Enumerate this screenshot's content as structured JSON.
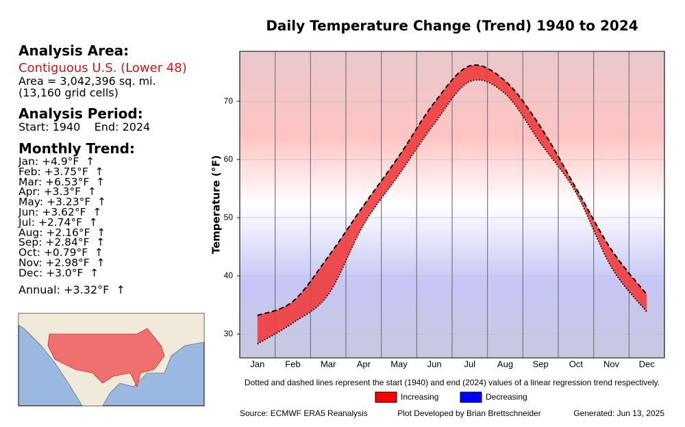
{
  "panel": {
    "area_heading": "Analysis Area:",
    "region": "Contiguous U.S. (Lower 48)",
    "area": "Area = 3,042,396 sq. mi.",
    "cells": "(13,160 grid cells)",
    "period_heading": "Analysis Period:",
    "period": "Start: 1940    End: 2024",
    "trend_heading": "Monthly Trend:",
    "trends": [
      "Jan: +4.9°F  ↑",
      "Feb: +3.75°F  ↑",
      "Mar: +6.53°F  ↑",
      "Apr: +3.3°F  ↑",
      "May: +3.23°F  ↑",
      "Jun: +3.62°F  ↑",
      "Jul: +2.74°F  ↑",
      "Aug: +2.16°F  ↑",
      "Sep: +2.84°F  ↑",
      "Oct: +0.79°F  ↑",
      "Nov: +2.98°F  ↑",
      "Dec: +3.0°F  ↑"
    ],
    "annual": "Annual: +3.32°F  ↑"
  },
  "chart_data": {
    "type": "line",
    "title": "Daily Temperature Change (Trend) 1940 to 2024",
    "y_label": "Temperature (°F)",
    "categories": [
      "Jan",
      "Feb",
      "Mar",
      "Apr",
      "May",
      "Jun",
      "Jul",
      "Aug",
      "Sep",
      "Oct",
      "Nov",
      "Dec"
    ],
    "series": [
      {
        "color": "#000000",
        "dash": "dotted",
        "values": [
          28.3,
          31.9,
          36.8,
          48.8,
          57.4,
          66.2,
          73.4,
          71.3,
          62.8,
          54.3,
          41.5,
          33.8
        ]
      },
      {
        "color": "#000000",
        "dash": "dashed",
        "values": [
          33.2,
          35.6,
          43.3,
          52.1,
          60.6,
          69.8,
          76.1,
          73.5,
          65.6,
          55.1,
          44.5,
          36.8
        ]
      }
    ],
    "fill_color": "#f03c3c",
    "ylim": [
      25.9,
      78.6
    ],
    "yticks": [
      30,
      40,
      50,
      60,
      70
    ],
    "grid": true,
    "note": "Dotted and dashed lines represent the start (1940) and end (2024) values of a linear regression trend respectively.",
    "legend": [
      {
        "name": "Increasing",
        "color": "#ff0000"
      },
      {
        "name": "Decreasing",
        "color": "#0000ff"
      }
    ],
    "source": "Source: ECMWF ERA5 Reanalysis",
    "credit": "Plot Developed by Brian Brettschneider",
    "generated": "Generated: Jun 13, 2025"
  }
}
